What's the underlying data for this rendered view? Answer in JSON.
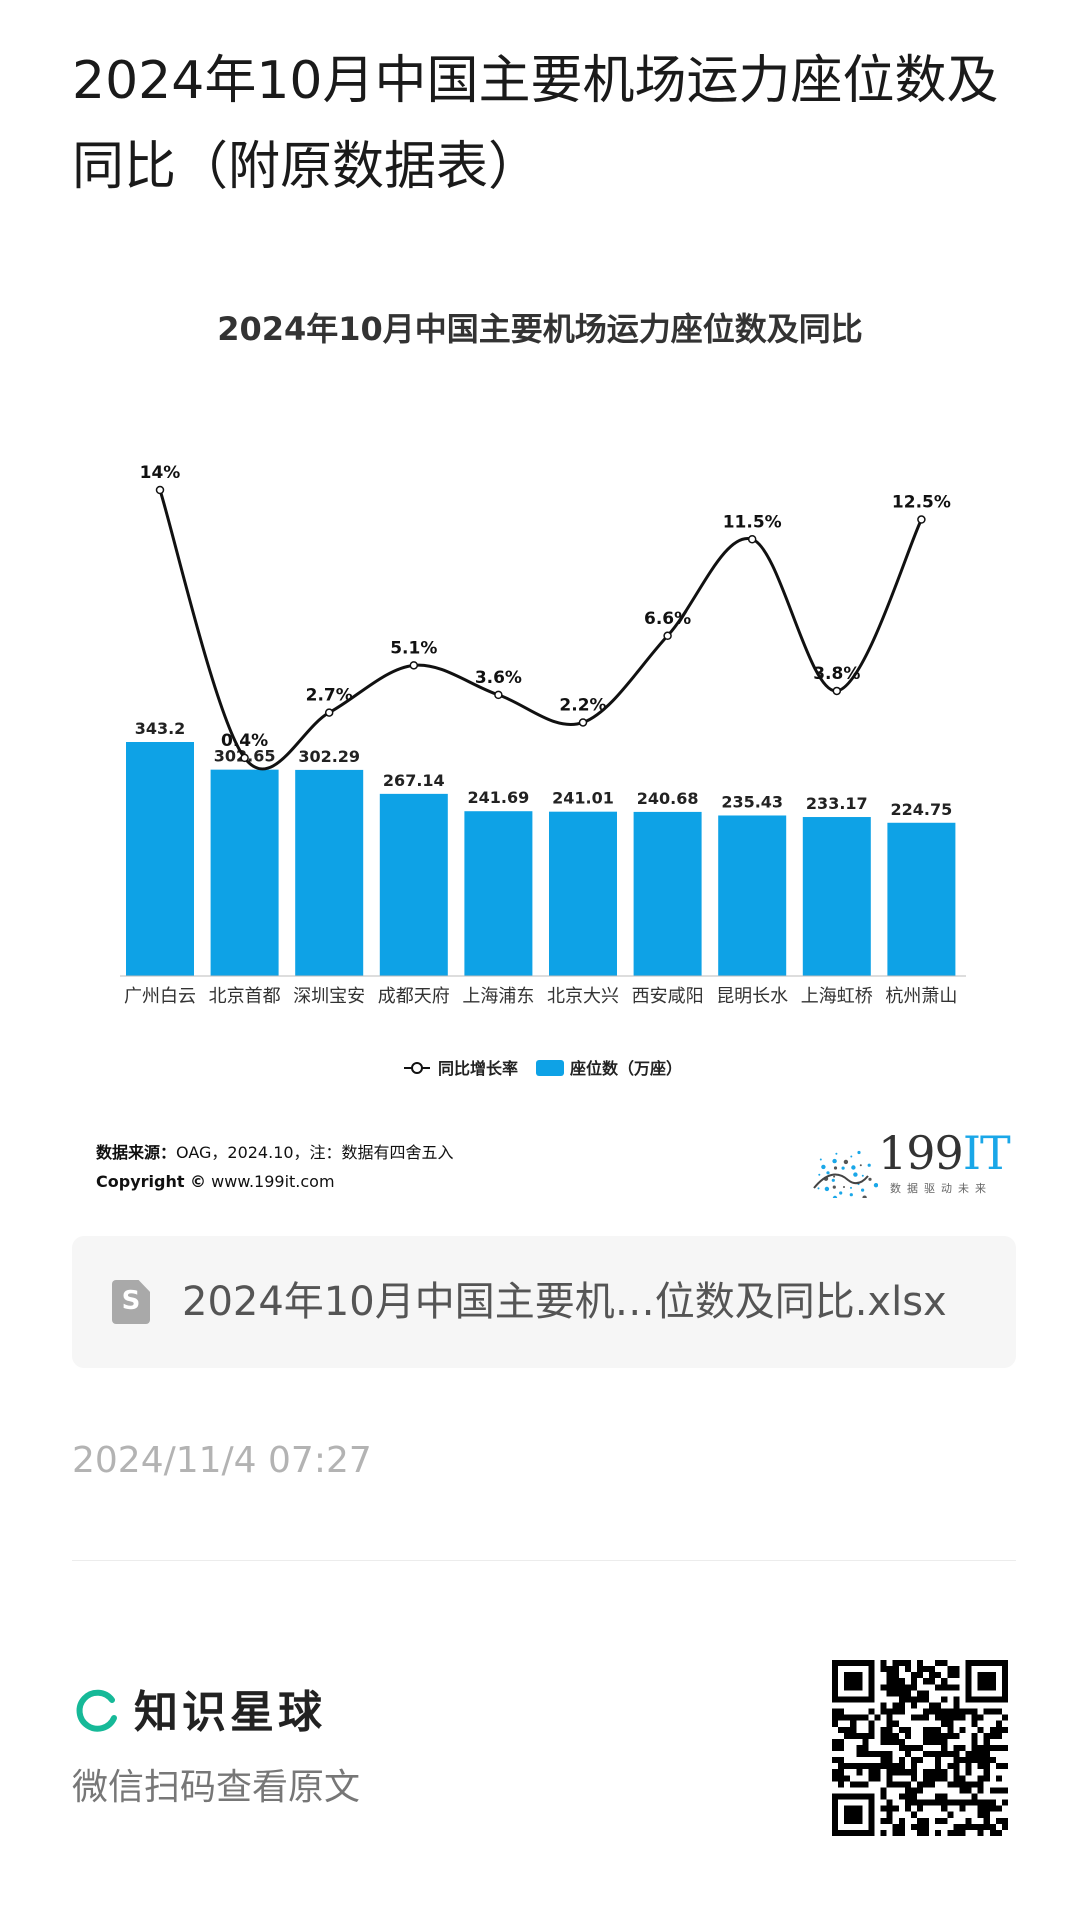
{
  "page": {
    "title": "2024年10月中国主要机场运力座位数及同比（附原数据表）"
  },
  "chart_data": {
    "type": "bar",
    "title": "2024年10月中国主要机场运力座位数及同比",
    "categories": [
      "广州白云",
      "北京首都",
      "深圳宝安",
      "成都天府",
      "上海浦东",
      "北京大兴",
      "西安咸阳",
      "昆明长水",
      "上海虹桥",
      "杭州萧山"
    ],
    "series": [
      {
        "name": "座位数（万座）",
        "type": "bar",
        "color": "#0ea2e6",
        "values": [
          343.2,
          302.65,
          302.29,
          267.14,
          241.69,
          241.01,
          240.68,
          235.43,
          233.17,
          224.75
        ],
        "labels": [
          "343.2",
          "302.65",
          "302.29",
          "267.14",
          "241.69",
          "241.01",
          "240.68",
          "235.43",
          "233.17",
          "224.75"
        ]
      },
      {
        "name": "同比增长率",
        "type": "line",
        "smooth": true,
        "color": "#111111",
        "values": [
          14,
          0.4,
          2.7,
          5.1,
          3.6,
          2.2,
          6.6,
          11.5,
          3.8,
          12.5
        ],
        "labels": [
          "14%",
          "0.4%",
          "2.7%",
          "5.1%",
          "3.6%",
          "2.2%",
          "6.6%",
          "11.5%",
          "3.8%",
          "12.5%"
        ]
      }
    ],
    "legend": {
      "position": "bottom",
      "items": [
        "同比增长率",
        "座位数（万座）"
      ]
    },
    "grid": false
  },
  "source": {
    "label": "数据来源：",
    "text": "OAG，2024.10，注：数据有四舍五入",
    "copyright_label": "Copyright ©",
    "site": "www.199it.com"
  },
  "logo199": {
    "number": "199",
    "suffix": "IT",
    "slogan": "数据驱动未来"
  },
  "file": {
    "icon": "spreadsheet-icon",
    "icon_letter": "S",
    "name": "2024年10月中国主要机…位数及同比.xlsx"
  },
  "post": {
    "date": "2024/11/4 07:27"
  },
  "footer": {
    "brand": "知识星球",
    "hint": "微信扫码查看原文",
    "brand_color": "#16b998"
  }
}
